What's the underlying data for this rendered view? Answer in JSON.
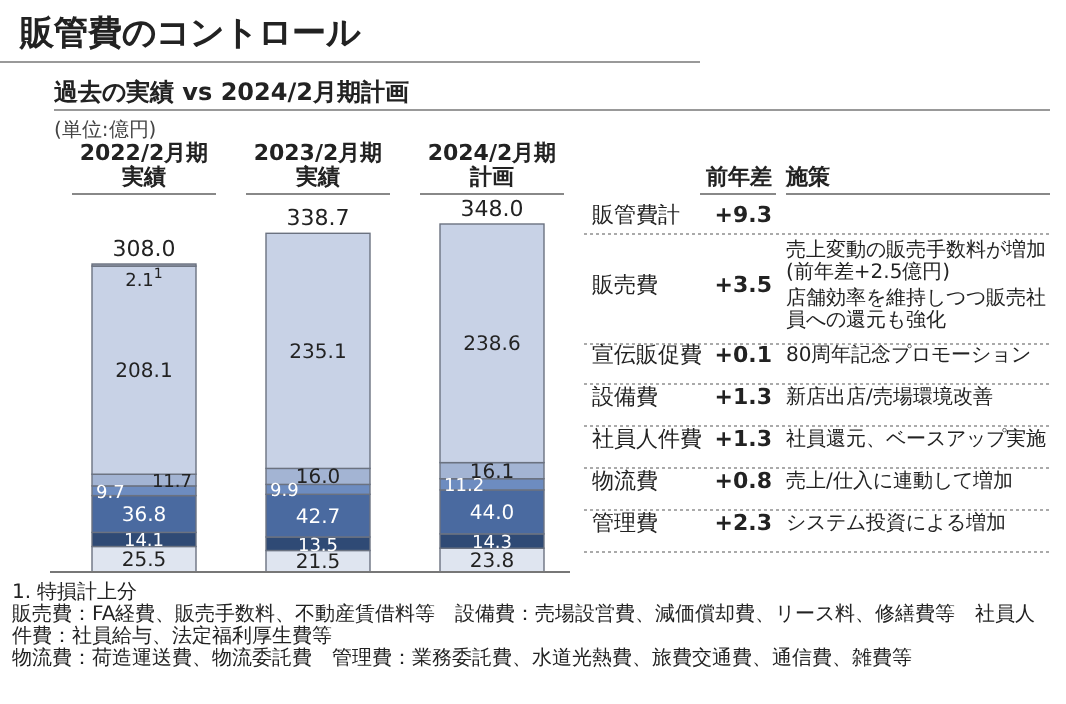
{
  "chart_data": {
    "type": "bar",
    "stacked": true,
    "title": "販管費のコントロール",
    "subtitle": "過去の実績 vs 2024/2月期計画",
    "categories": [
      "2022/2月期実績",
      "2023/2月期実績",
      "2024/2月期計画"
    ],
    "series": [
      {
        "name": "管理費",
        "color": "#dfe5f0",
        "values": [
          25.5,
          21.5,
          23.8
        ],
        "value_labels": [
          "25.5",
          "21.5",
          "23.8"
        ]
      },
      {
        "name": "物流費",
        "color": "#2f4a75",
        "values": [
          14.1,
          13.5,
          14.3
        ],
        "value_labels": [
          "14.1",
          "13.5",
          "14.3"
        ]
      },
      {
        "name": "社員人件費",
        "color": "#4a6aa0",
        "values": [
          36.8,
          42.7,
          44.0
        ],
        "value_labels": [
          "36.8",
          "42.7",
          "44.0"
        ]
      },
      {
        "name": "設備費",
        "color": "#6d8cc0",
        "values": [
          9.7,
          9.9,
          11.2
        ],
        "value_labels": [
          "9.7",
          "9.9",
          "11.2"
        ]
      },
      {
        "name": "宣伝販促費",
        "color": "#a3b4d3",
        "values": [
          11.7,
          16.0,
          16.1
        ],
        "value_labels": [
          "11.7",
          "16.0",
          "16.1"
        ]
      },
      {
        "name": "販売費",
        "color": "#c8d2e6",
        "values": [
          208.1,
          235.1,
          238.6
        ],
        "value_labels": [
          "208.1",
          "235.1",
          "238.6"
        ]
      },
      {
        "color": "#9ea6b4",
        "values": [
          2.1,
          null,
          null
        ],
        "value_labels": [
          "2.1$^{1}$",
          null,
          null
        ]
      }
    ],
    "totals": [
      "308.0",
      "338.7",
      "348.0"
    ],
    "annotations": [
      "(単位:億円)",
      "前年差",
      "施策",
      "販管費計",
      "+9.3",
      "+3.5",
      "売上変動の販売手数料が増加 (前年差+2.5億円)",
      "店舗効率を維持しつつ販売社員への還元も強化",
      "+0.1",
      "80周年記念プロモーション",
      "+1.3",
      "新店出店/売場環境改善",
      "+1.3",
      "社員還元、ベースアップ実施",
      "+0.8",
      "売上/仕入に連動して増加",
      "+2.3",
      "システム投資による増加",
      "1. 特損計上分",
      "販売費：FA経費、販売手数料、不動産賃借料等　設備費：売場設営費、減価償却費、リース料、修繕費等　社員人件費：社員給与、法定福利厚生費等",
      "物流費：荷造運送費、物流委託費　管理費：業務委託費、水道光熱費、旅費交通費、通信費、雑費等"
    ]
  }
}
